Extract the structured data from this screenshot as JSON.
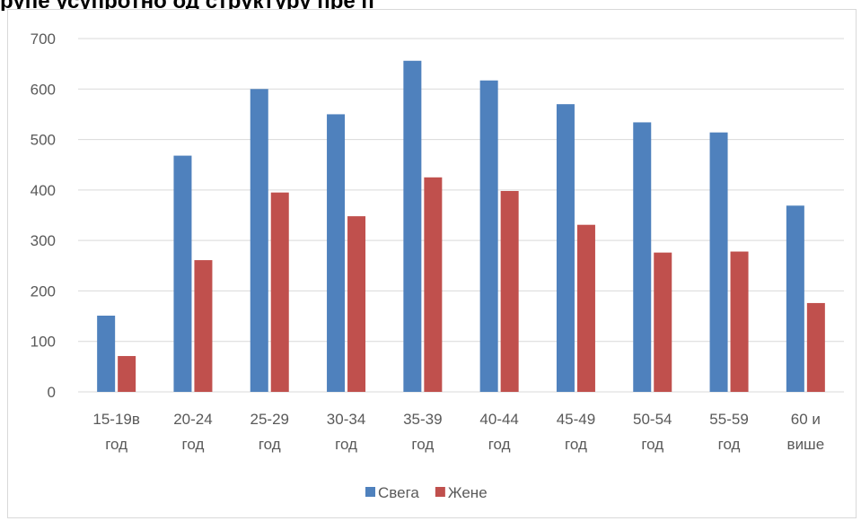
{
  "title_strip": "рупе усупротно од структуру пре п",
  "colors": {
    "Свега": "#4f81bd",
    "Жене": "#c0504d",
    "grid": "#d9d9d9",
    "text": "#595959"
  },
  "chart_data": {
    "type": "bar",
    "title": "",
    "xlabel": "",
    "ylabel": "",
    "ylim": [
      0,
      700
    ],
    "yticks": [
      0,
      100,
      200,
      300,
      400,
      500,
      600,
      700
    ],
    "grid": true,
    "legend_position": "bottom",
    "categories": [
      [
        "15-19в",
        "год"
      ],
      [
        "20-24",
        "год"
      ],
      [
        "25-29",
        "год"
      ],
      [
        "30-34",
        "год"
      ],
      [
        "35-39",
        "год"
      ],
      [
        "40-44",
        "год"
      ],
      [
        "45-49",
        "год"
      ],
      [
        "50-54",
        "год"
      ],
      [
        "55-59",
        "год"
      ],
      [
        "60 и",
        "више"
      ]
    ],
    "series": [
      {
        "name": "Свега",
        "values": [
          151,
          468,
          600,
          550,
          656,
          617,
          570,
          534,
          514,
          369
        ]
      },
      {
        "name": "Жене",
        "values": [
          71,
          261,
          395,
          348,
          425,
          398,
          331,
          276,
          278,
          176
        ]
      }
    ]
  }
}
